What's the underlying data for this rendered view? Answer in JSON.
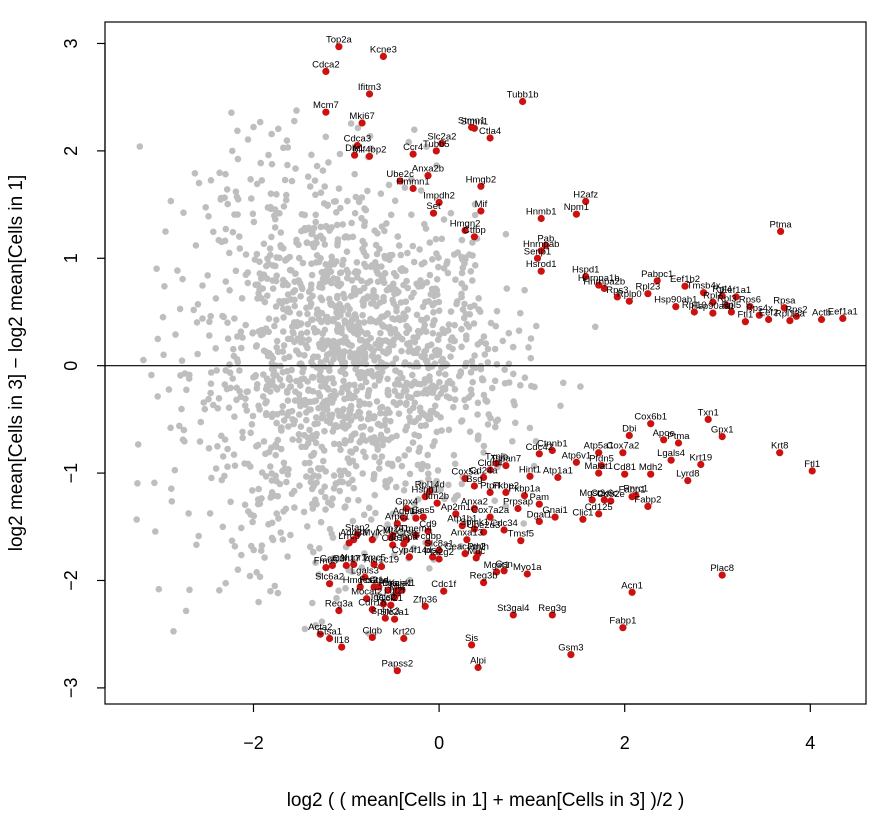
{
  "chart_data": {
    "type": "scatter",
    "title": "",
    "xlabel": "log2 ( ( mean[Cells in 1] + mean[Cells in 3] )/2 )",
    "ylabel": "log2 mean[Cells in 3] − log2 mean[Cells in 1]",
    "xlim": [
      -3.6,
      4.6
    ],
    "ylim": [
      -3.15,
      3.2
    ],
    "x_ticks": [
      -2,
      0,
      2,
      4
    ],
    "y_ticks": [
      -3,
      -2,
      -1,
      0,
      1,
      2,
      3
    ],
    "x_tick_labels": [
      "−2",
      "0",
      "2",
      "4"
    ],
    "y_tick_labels": [
      "−3",
      "−2",
      "−1",
      "0",
      "1",
      "2",
      "3"
    ],
    "reference_line_y": 0,
    "grid": false,
    "colors": {
      "background_points": "#bebebe",
      "highlighted_points": "#cc1111",
      "reference_line": "#000000"
    },
    "highlighted": [
      {
        "label": "Top2a",
        "x": -1.08,
        "y": 2.97
      },
      {
        "label": "Kcne3",
        "x": -0.6,
        "y": 2.88
      },
      {
        "label": "Cdca2",
        "x": -1.22,
        "y": 2.74
      },
      {
        "label": "Ifitm3",
        "x": -0.75,
        "y": 2.53
      },
      {
        "label": "Tubb1b",
        "x": 0.9,
        "y": 2.46
      },
      {
        "label": "Mcm7",
        "x": -1.22,
        "y": 2.36
      },
      {
        "label": "Mki67",
        "x": -0.83,
        "y": 2.26
      },
      {
        "label": "Stmn1",
        "x": 0.35,
        "y": 2.22
      },
      {
        "label": "Stmn1",
        "x": 0.38,
        "y": 2.21
      },
      {
        "label": "Ctla4",
        "x": 0.55,
        "y": 2.12
      },
      {
        "label": "Cdca3",
        "x": -0.88,
        "y": 2.05
      },
      {
        "label": "Slc2a2",
        "x": 0.03,
        "y": 2.07
      },
      {
        "label": "Ccr4",
        "x": -0.28,
        "y": 1.97
      },
      {
        "label": "Tubb5",
        "x": -0.03,
        "y": 2.0
      },
      {
        "label": "Dlk1",
        "x": -0.91,
        "y": 1.96
      },
      {
        "label": "Mif4bp2",
        "x": -0.75,
        "y": 1.95
      },
      {
        "label": "Anxa2b",
        "x": -0.12,
        "y": 1.77
      },
      {
        "label": "Ube2c",
        "x": -0.42,
        "y": 1.72
      },
      {
        "label": "Hmgb2",
        "x": 0.45,
        "y": 1.67
      },
      {
        "label": "Hmmn1",
        "x": -0.28,
        "y": 1.65
      },
      {
        "label": "H2afz",
        "x": 1.58,
        "y": 1.53
      },
      {
        "label": "Impdh2",
        "x": 0.0,
        "y": 1.52
      },
      {
        "label": "Mif",
        "x": 0.45,
        "y": 1.44
      },
      {
        "label": "Npm1",
        "x": 1.48,
        "y": 1.41
      },
      {
        "label": "Set",
        "x": -0.06,
        "y": 1.42
      },
      {
        "label": "Hnmb1",
        "x": 1.1,
        "y": 1.37
      },
      {
        "label": "Hmgn2",
        "x": 0.28,
        "y": 1.26
      },
      {
        "label": "Ctfbp",
        "x": 0.38,
        "y": 1.2
      },
      {
        "label": "Ptma",
        "x": 3.68,
        "y": 1.25
      },
      {
        "label": "Pab",
        "x": 1.15,
        "y": 1.12
      },
      {
        "label": "Hnrnpab",
        "x": 1.1,
        "y": 1.07
      },
      {
        "label": "Senp1",
        "x": 1.06,
        "y": 1.0
      },
      {
        "label": "Hsrod1",
        "x": 1.1,
        "y": 0.88
      },
      {
        "label": "Hspd1",
        "x": 1.58,
        "y": 0.83
      },
      {
        "label": "Hnrnpa1b",
        "x": 1.72,
        "y": 0.75
      },
      {
        "label": "Hnrnpa2b",
        "x": 1.78,
        "y": 0.72
      },
      {
        "label": "Pabpc1",
        "x": 2.35,
        "y": 0.79
      },
      {
        "label": "Eef1b2",
        "x": 2.65,
        "y": 0.74
      },
      {
        "label": "Rpl23",
        "x": 2.25,
        "y": 0.67
      },
      {
        "label": "Rps3",
        "x": 1.92,
        "y": 0.64
      },
      {
        "label": "Tmsb4x",
        "x": 2.85,
        "y": 0.68
      },
      {
        "label": "Rpl4",
        "x": 3.05,
        "y": 0.65
      },
      {
        "label": "Eef1a1",
        "x": 3.2,
        "y": 0.64
      },
      {
        "label": "Rplp0",
        "x": 2.05,
        "y": 0.6
      },
      {
        "label": "Rpl7",
        "x": 2.95,
        "y": 0.59
      },
      {
        "label": "Hsp90ab1",
        "x": 2.55,
        "y": 0.55
      },
      {
        "label": "Rpl3",
        "x": 3.1,
        "y": 0.56
      },
      {
        "label": "Rps6",
        "x": 3.35,
        "y": 0.55
      },
      {
        "label": "Rpsa",
        "x": 3.72,
        "y": 0.54
      },
      {
        "label": "Rpl10",
        "x": 2.75,
        "y": 0.5
      },
      {
        "label": "Hsp90aa1",
        "x": 2.95,
        "y": 0.49
      },
      {
        "label": "Rpl5",
        "x": 3.15,
        "y": 0.5
      },
      {
        "label": "Rps4x",
        "x": 3.45,
        "y": 0.47
      },
      {
        "label": "Rps2",
        "x": 3.85,
        "y": 0.46
      },
      {
        "label": "Rpl13a",
        "x": 3.78,
        "y": 0.42
      },
      {
        "label": "Ftl1",
        "x": 3.3,
        "y": 0.41
      },
      {
        "label": "Eef2",
        "x": 3.55,
        "y": 0.43
      },
      {
        "label": "Actb",
        "x": 4.12,
        "y": 0.43
      },
      {
        "label": "Eef1a1",
        "x": 4.35,
        "y": 0.44
      },
      {
        "label": "Txn1",
        "x": 2.9,
        "y": -0.5
      },
      {
        "label": "Cox6b1",
        "x": 2.28,
        "y": -0.54
      },
      {
        "label": "Gpx1",
        "x": 3.05,
        "y": -0.66
      },
      {
        "label": "Dbi",
        "x": 2.05,
        "y": -0.65
      },
      {
        "label": "Apoe",
        "x": 2.42,
        "y": -0.69
      },
      {
        "label": "Ptma",
        "x": 2.58,
        "y": -0.72
      },
      {
        "label": "Krt8",
        "x": 3.67,
        "y": -0.81
      },
      {
        "label": "Atp5a1",
        "x": 1.72,
        "y": -0.81
      },
      {
        "label": "Cox7a2",
        "x": 1.98,
        "y": -0.81
      },
      {
        "label": "Ctnnb1",
        "x": 1.22,
        "y": -0.79
      },
      {
        "label": "Cdc42",
        "x": 1.08,
        "y": -0.82
      },
      {
        "label": "Lgals4",
        "x": 2.5,
        "y": -0.88
      },
      {
        "label": "Krt19",
        "x": 2.82,
        "y": -0.92
      },
      {
        "label": "Atp6v1",
        "x": 1.48,
        "y": -0.9
      },
      {
        "label": "Pfdn5",
        "x": 1.75,
        "y": -0.93
      },
      {
        "label": "Ftl1",
        "x": 4.02,
        "y": -0.98
      },
      {
        "label": "Malat1",
        "x": 1.72,
        "y": -1.0
      },
      {
        "label": "Cd81",
        "x": 2.0,
        "y": -1.01
      },
      {
        "label": "Mdh2",
        "x": 2.28,
        "y": -1.01
      },
      {
        "label": "Lyrd8",
        "x": 2.68,
        "y": -1.07
      },
      {
        "label": "Txnip",
        "x": 0.62,
        "y": -0.91
      },
      {
        "label": "Tspan7",
        "x": 0.72,
        "y": -0.93
      },
      {
        "label": "Cldn4",
        "x": 0.55,
        "y": -0.97
      },
      {
        "label": "Hint1",
        "x": 0.98,
        "y": -1.03
      },
      {
        "label": "Atp1a1",
        "x": 1.28,
        "y": -1.04
      },
      {
        "label": "Cox5a",
        "x": 0.28,
        "y": -1.05
      },
      {
        "label": "Cd24a",
        "x": 0.48,
        "y": -1.04
      },
      {
        "label": "Bsg",
        "x": 0.38,
        "y": -1.12
      },
      {
        "label": "Fkbp2",
        "x": 0.72,
        "y": -1.18
      },
      {
        "label": "Fkbp1a",
        "x": 0.92,
        "y": -1.21
      },
      {
        "label": "Ptprf",
        "x": 0.55,
        "y": -1.18
      },
      {
        "label": "Pnrc1",
        "x": 2.12,
        "y": -1.21
      },
      {
        "label": "Fabp1",
        "x": 2.08,
        "y": -1.22
      },
      {
        "label": "Rpl14d",
        "x": -0.1,
        "y": -1.17
      },
      {
        "label": "Hspb1",
        "x": -0.15,
        "y": -1.22
      },
      {
        "label": "Pam",
        "x": 1.08,
        "y": -1.29
      },
      {
        "label": "Mgst3",
        "x": 1.65,
        "y": -1.25
      },
      {
        "label": "Cox6c",
        "x": 1.78,
        "y": -1.25
      },
      {
        "label": "Cd82e",
        "x": 1.85,
        "y": -1.26
      },
      {
        "label": "Fabp2",
        "x": 2.25,
        "y": -1.31
      },
      {
        "label": "Gpx4",
        "x": -0.35,
        "y": -1.33
      },
      {
        "label": "Itm2b",
        "x": -0.02,
        "y": -1.28
      },
      {
        "label": "Anxa2",
        "x": 0.38,
        "y": -1.33
      },
      {
        "label": "Prpsap",
        "x": 0.85,
        "y": -1.33
      },
      {
        "label": "Cd125",
        "x": 1.72,
        "y": -1.38
      },
      {
        "label": "Adh1",
        "x": -0.38,
        "y": -1.42
      },
      {
        "label": "Ids",
        "x": -0.25,
        "y": -1.42
      },
      {
        "label": "Gas5",
        "x": -0.17,
        "y": -1.41
      },
      {
        "label": "Ap2m1",
        "x": 0.18,
        "y": -1.38
      },
      {
        "label": "Cox7a2a",
        "x": 0.55,
        "y": -1.41
      },
      {
        "label": "Gnai1",
        "x": 1.25,
        "y": -1.41
      },
      {
        "label": "Dgat1",
        "x": 1.08,
        "y": -1.45
      },
      {
        "label": "Clic1",
        "x": 1.55,
        "y": -1.43
      },
      {
        "label": "Arpc1",
        "x": -0.45,
        "y": -1.47
      },
      {
        "label": "Atp1b1",
        "x": 0.25,
        "y": -1.49
      },
      {
        "label": "Spink1",
        "x": 0.38,
        "y": -1.52
      },
      {
        "label": "Cdc34",
        "x": 0.7,
        "y": -1.53
      },
      {
        "label": "Ube2d3",
        "x": 0.48,
        "y": -1.55
      },
      {
        "label": "Cd9",
        "x": -0.12,
        "y": -1.54
      },
      {
        "label": "Mt1",
        "x": -0.52,
        "y": -1.6
      },
      {
        "label": "Stap2",
        "x": -0.88,
        "y": -1.57
      },
      {
        "label": "Cyp2e1",
        "x": -0.5,
        "y": -1.58
      },
      {
        "label": "Ctse",
        "x": -0.35,
        "y": -1.62
      },
      {
        "label": "Tmem4",
        "x": -0.25,
        "y": -1.58
      },
      {
        "label": "Anxa13",
        "x": 0.3,
        "y": -1.62
      },
      {
        "label": "Tmsf5",
        "x": 0.88,
        "y": -1.63
      },
      {
        "label": "Add3a",
        "x": -0.92,
        "y": -1.62
      },
      {
        "label": "Mylk",
        "x": -0.72,
        "y": -1.62
      },
      {
        "label": "Cebpa",
        "x": -0.38,
        "y": -1.66
      },
      {
        "label": "Cdc1",
        "x": -0.5,
        "y": -1.67
      },
      {
        "label": "Fcgbp",
        "x": -0.12,
        "y": -1.65
      },
      {
        "label": "Lrrc3",
        "x": -0.97,
        "y": -1.65
      },
      {
        "label": "Slc8a1",
        "x": 0.0,
        "y": -1.72
      },
      {
        "label": "Cyp4f14",
        "x": -0.32,
        "y": -1.78
      },
      {
        "label": "Ids2",
        "x": -0.07,
        "y": -1.78
      },
      {
        "label": "Pla2g2",
        "x": 0.0,
        "y": -1.8
      },
      {
        "label": "Ceacam2",
        "x": 0.28,
        "y": -1.75
      },
      {
        "label": "Muc",
        "x": 0.4,
        "y": -1.79
      },
      {
        "label": "Pthlh",
        "x": 0.42,
        "y": -1.75
      },
      {
        "label": "Gcnt3",
        "x": -1.15,
        "y": -1.86
      },
      {
        "label": "Cdh17",
        "x": -1.0,
        "y": -1.86
      },
      {
        "label": "Nupr1",
        "x": -0.92,
        "y": -1.85
      },
      {
        "label": "Tmc5",
        "x": -0.7,
        "y": -1.85
      },
      {
        "label": "Akr1c19",
        "x": -0.62,
        "y": -1.87
      },
      {
        "label": "Fmo5",
        "x": -1.22,
        "y": -1.88
      },
      {
        "label": "Gsn",
        "x": 0.7,
        "y": -1.91
      },
      {
        "label": "Mgst1",
        "x": 0.62,
        "y": -1.92
      },
      {
        "label": "Myo1a",
        "x": 0.95,
        "y": -1.94
      },
      {
        "label": "Plac8",
        "x": 3.05,
        "y": -1.95
      },
      {
        "label": "Lgals3",
        "x": -0.8,
        "y": -1.97
      },
      {
        "label": "Slc6a2",
        "x": -1.18,
        "y": -2.03
      },
      {
        "label": "Reg3b",
        "x": 0.48,
        "y": -2.02
      },
      {
        "label": "Hmgcs2",
        "x": -0.85,
        "y": -2.06
      },
      {
        "label": "Fcer1a",
        "x": -0.7,
        "y": -2.06
      },
      {
        "label": "Ctsd",
        "x": -0.65,
        "y": -2.06
      },
      {
        "label": "Ptgs",
        "x": -0.55,
        "y": -2.09
      },
      {
        "label": "Dnaja1",
        "x": -0.45,
        "y": -2.09
      },
      {
        "label": "Kcnk1",
        "x": -0.4,
        "y": -2.09
      },
      {
        "label": "Cdc1f",
        "x": 0.05,
        "y": -2.1
      },
      {
        "label": "Mt2",
        "x": -0.45,
        "y": -2.12
      },
      {
        "label": "Acn1",
        "x": 2.08,
        "y": -2.11
      },
      {
        "label": "Mocat2",
        "x": -0.78,
        "y": -2.17
      },
      {
        "label": "Lgt2f",
        "x": -0.48,
        "y": -2.16
      },
      {
        "label": "Igals2",
        "x": -0.6,
        "y": -2.22
      },
      {
        "label": "Ccl21",
        "x": -0.52,
        "y": -2.23
      },
      {
        "label": "Zfp36",
        "x": -0.15,
        "y": -2.24
      },
      {
        "label": "Reg3a",
        "x": -1.08,
        "y": -2.28
      },
      {
        "label": "Cdh18",
        "x": -0.72,
        "y": -2.27
      },
      {
        "label": "St3gal4",
        "x": 0.8,
        "y": -2.32
      },
      {
        "label": "Reg3g",
        "x": 1.22,
        "y": -2.32
      },
      {
        "label": "Spink3",
        "x": -0.58,
        "y": -2.35
      },
      {
        "label": "Slc2a1",
        "x": -0.48,
        "y": -2.36
      },
      {
        "label": "Fabp1",
        "x": 1.98,
        "y": -2.44
      },
      {
        "label": "Acta2",
        "x": -1.28,
        "y": -2.5
      },
      {
        "label": "Ctsa1",
        "x": -1.18,
        "y": -2.54
      },
      {
        "label": "Clqb",
        "x": -0.72,
        "y": -2.53
      },
      {
        "label": "Krt20",
        "x": -0.38,
        "y": -2.54
      },
      {
        "label": "Il18",
        "x": -1.05,
        "y": -2.62
      },
      {
        "label": "Sis",
        "x": 0.35,
        "y": -2.6
      },
      {
        "label": "Gsm3",
        "x": 1.42,
        "y": -2.69
      },
      {
        "label": "Papss2",
        "x": -0.45,
        "y": -2.84
      },
      {
        "label": "Alpi",
        "x": 0.42,
        "y": -2.81
      }
    ]
  }
}
